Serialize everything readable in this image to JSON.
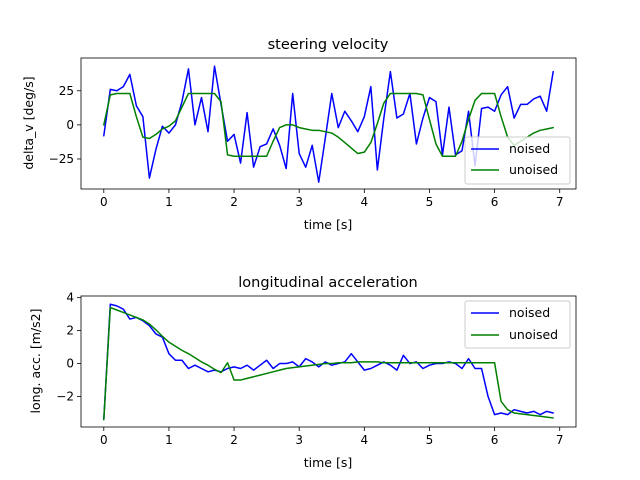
{
  "chart_data": [
    {
      "type": "line",
      "title": "steering velocity",
      "xlabel": "time [s]",
      "ylabel": "delta_v [deg/s]",
      "xlim": [
        -0.35,
        7.25
      ],
      "ylim": [
        -47,
        49
      ],
      "xticks": [
        0,
        1,
        2,
        3,
        4,
        5,
        6,
        7
      ],
      "yticks": [
        -25,
        0,
        25
      ],
      "legend": "lower-right",
      "series": [
        {
          "name": "noised",
          "color": "#0000ff",
          "x": [
            0.0,
            0.1,
            0.2,
            0.3,
            0.4,
            0.5,
            0.6,
            0.7,
            0.8,
            0.9,
            1.0,
            1.1,
            1.2,
            1.3,
            1.4,
            1.5,
            1.6,
            1.7,
            1.8,
            1.9,
            2.0,
            2.1,
            2.2,
            2.3,
            2.4,
            2.5,
            2.6,
            2.7,
            2.8,
            2.9,
            3.0,
            3.1,
            3.2,
            3.3,
            3.4,
            3.5,
            3.6,
            3.7,
            3.8,
            3.9,
            4.0,
            4.1,
            4.2,
            4.3,
            4.4,
            4.5,
            4.6,
            4.7,
            4.8,
            4.9,
            5.0,
            5.1,
            5.2,
            5.3,
            5.4,
            5.5,
            5.6,
            5.7,
            5.8,
            5.9,
            6.0,
            6.1,
            6.2,
            6.3,
            6.4,
            6.5,
            6.6,
            6.7,
            6.8,
            6.9
          ],
          "y": [
            -8,
            26,
            25,
            28,
            37,
            14,
            6,
            -39,
            -18,
            -1,
            -6,
            0,
            17,
            41,
            0,
            20,
            -5,
            43,
            15,
            -12,
            -7,
            -28,
            9,
            -31,
            -16,
            -14,
            -3,
            -15,
            -32,
            23,
            -21,
            -31,
            -15,
            -42,
            -10,
            23,
            -2,
            10,
            3,
            -5,
            6,
            28,
            -33,
            5,
            39,
            5,
            8,
            23,
            -14,
            5,
            20,
            17,
            -22,
            13,
            -22,
            -19,
            10,
            -30,
            12,
            13,
            10,
            22,
            28,
            5,
            15,
            15,
            19,
            21,
            10,
            39
          ]
        },
        {
          "name": "unoised",
          "color": "#008000",
          "x": [
            0.0,
            0.1,
            0.2,
            0.3,
            0.4,
            0.5,
            0.6,
            0.7,
            0.8,
            0.9,
            1.0,
            1.1,
            1.2,
            1.3,
            1.4,
            1.5,
            1.6,
            1.7,
            1.8,
            1.9,
            2.0,
            2.1,
            2.2,
            2.3,
            2.4,
            2.5,
            2.6,
            2.7,
            2.8,
            2.9,
            3.0,
            3.1,
            3.2,
            3.3,
            3.4,
            3.5,
            3.6,
            3.7,
            3.8,
            3.9,
            4.0,
            4.1,
            4.2,
            4.3,
            4.4,
            4.5,
            4.6,
            4.7,
            4.8,
            4.9,
            5.0,
            5.1,
            5.2,
            5.3,
            5.4,
            5.5,
            5.6,
            5.7,
            5.8,
            5.9,
            6.0,
            6.1,
            6.2,
            6.3,
            6.4,
            6.5,
            6.6,
            6.7,
            6.8,
            6.9
          ],
          "y": [
            0,
            22,
            23,
            23,
            23,
            6,
            -9,
            -10,
            -7,
            -3,
            -1,
            3,
            13,
            23,
            23,
            23,
            23,
            23,
            17,
            -22,
            -23,
            -23,
            -23,
            -23,
            -23,
            -23,
            -12,
            -2,
            0,
            0,
            -2,
            -3,
            -4,
            -4,
            -5,
            -6,
            -9,
            -13,
            -17,
            -21,
            -20,
            -13,
            1,
            16,
            23,
            23,
            23,
            23,
            23,
            22,
            4,
            -14,
            -23,
            -23,
            -23,
            -12,
            4,
            18,
            23,
            23,
            23,
            6,
            -9,
            -15,
            -12,
            -9,
            -6,
            -4,
            -3,
            -2
          ]
        }
      ]
    },
    {
      "type": "line",
      "title": "longitudinal acceleration",
      "xlabel": "time [s]",
      "ylabel": "long. acc. [m/s2]",
      "xlim": [
        -0.35,
        7.25
      ],
      "ylim": [
        -3.85,
        4.1
      ],
      "xticks": [
        0,
        1,
        2,
        3,
        4,
        5,
        6,
        7
      ],
      "yticks": [
        -2,
        0,
        2,
        4
      ],
      "legend": "upper-right",
      "series": [
        {
          "name": "noised",
          "color": "#0000ff",
          "x": [
            0.0,
            0.1,
            0.2,
            0.3,
            0.4,
            0.5,
            0.6,
            0.7,
            0.8,
            0.9,
            1.0,
            1.1,
            1.2,
            1.3,
            1.4,
            1.5,
            1.6,
            1.7,
            1.8,
            1.9,
            2.0,
            2.1,
            2.2,
            2.3,
            2.4,
            2.5,
            2.6,
            2.7,
            2.8,
            2.9,
            3.0,
            3.1,
            3.2,
            3.3,
            3.4,
            3.5,
            3.6,
            3.7,
            3.8,
            3.9,
            4.0,
            4.1,
            4.2,
            4.3,
            4.4,
            4.5,
            4.6,
            4.7,
            4.8,
            4.9,
            5.0,
            5.1,
            5.2,
            5.3,
            5.4,
            5.5,
            5.6,
            5.7,
            5.8,
            5.9,
            6.0,
            6.1,
            6.2,
            6.3,
            6.4,
            6.5,
            6.6,
            6.7,
            6.8,
            6.9
          ],
          "y": [
            -3.4,
            3.6,
            3.5,
            3.3,
            2.7,
            2.8,
            2.6,
            2.3,
            1.8,
            1.6,
            0.6,
            0.2,
            0.2,
            -0.3,
            -0.1,
            -0.3,
            -0.5,
            -0.4,
            -0.5,
            -0.3,
            -0.2,
            -0.3,
            -0.1,
            -0.4,
            -0.1,
            0.2,
            -0.3,
            0.0,
            0.0,
            0.1,
            -0.2,
            0.3,
            0.1,
            -0.2,
            0.1,
            -0.1,
            0.0,
            0.1,
            0.6,
            0.1,
            -0.4,
            -0.3,
            -0.1,
            0.1,
            -0.1,
            -0.4,
            0.5,
            0.0,
            0.1,
            -0.3,
            -0.1,
            0.0,
            0.0,
            0.1,
            0.0,
            -0.3,
            0.3,
            -0.3,
            -0.3,
            -2.0,
            -3.1,
            -3.0,
            -3.1,
            -2.8,
            -2.9,
            -3.0,
            -2.9,
            -3.1,
            -2.9,
            -3.0
          ],
          "note_x_override": null
        },
        {
          "name": "unoised",
          "color": "#008000",
          "x": [
            0.0,
            0.1,
            0.2,
            0.3,
            0.4,
            0.5,
            0.6,
            0.7,
            0.8,
            0.9,
            1.0,
            1.1,
            1.2,
            1.3,
            1.4,
            1.5,
            1.6,
            1.7,
            1.8,
            1.9,
            2.0,
            2.1,
            2.2,
            2.3,
            2.4,
            2.5,
            2.6,
            2.7,
            2.8,
            2.9,
            3.0,
            3.1,
            3.2,
            3.3,
            3.4,
            3.5,
            3.6,
            3.7,
            3.8,
            3.9,
            4.0,
            4.1,
            4.2,
            4.3,
            4.4,
            4.5,
            4.6,
            4.7,
            4.8,
            4.9,
            5.0,
            5.1,
            5.2,
            5.3,
            5.4,
            5.5,
            5.6,
            5.7,
            5.8,
            5.9,
            6.0,
            6.1,
            6.2,
            6.3,
            6.4,
            6.5,
            6.6,
            6.7,
            6.8,
            6.9
          ],
          "y": [
            -3.4,
            3.4,
            3.25,
            3.1,
            2.95,
            2.8,
            2.65,
            2.4,
            2.05,
            1.65,
            1.3,
            1.05,
            0.8,
            0.6,
            0.35,
            0.1,
            -0.1,
            -0.35,
            -0.55,
            0.05,
            -1.0,
            -1.0,
            -0.9,
            -0.8,
            -0.7,
            -0.6,
            -0.5,
            -0.4,
            -0.3,
            -0.25,
            -0.2,
            -0.15,
            -0.1,
            -0.05,
            0.0,
            0.0,
            0.05,
            0.05,
            0.05,
            0.1,
            0.1,
            0.1,
            0.1,
            0.05,
            0.05,
            0.05,
            0.05,
            0.05,
            0.05,
            0.05,
            0.05,
            0.05,
            0.05,
            0.05,
            0.05,
            0.05,
            0.05,
            0.05,
            0.05,
            0.05,
            0.05,
            -2.3,
            -2.8,
            -3.0,
            -3.05,
            -3.1,
            -3.15,
            -3.2,
            -3.25,
            -3.3
          ]
        }
      ]
    }
  ]
}
